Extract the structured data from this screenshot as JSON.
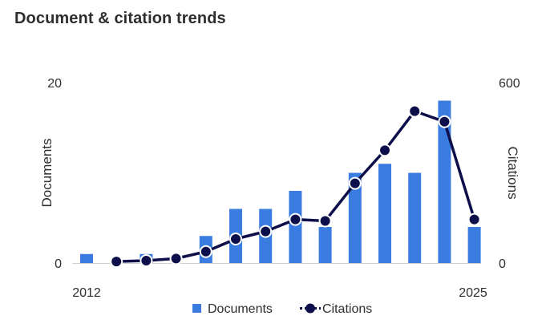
{
  "title": "Document & citation trends",
  "chart_data": {
    "type": "bar+line",
    "x": [
      2012,
      2013,
      2014,
      2015,
      2016,
      2017,
      2018,
      2019,
      2020,
      2021,
      2022,
      2023,
      2024,
      2025
    ],
    "x_tick_labels": [
      "2012",
      "2025"
    ],
    "series": [
      {
        "name": "Documents",
        "type": "bar",
        "axis": "left",
        "color": "#3a7be0",
        "values": [
          1,
          0,
          1,
          0,
          3,
          6,
          6,
          8,
          4,
          10,
          11,
          10,
          18,
          4
        ]
      },
      {
        "name": "Citations",
        "type": "line",
        "axis": "right",
        "color": "#0c0f4a",
        "x": [
          2013,
          2014,
          2015,
          2016,
          2017,
          2018,
          2019,
          2020,
          2021,
          2022,
          2023,
          2024,
          2025
        ],
        "values": [
          5,
          8,
          15,
          38,
          80,
          105,
          145,
          140,
          265,
          375,
          505,
          470,
          145
        ]
      }
    ],
    "y_left": {
      "label": "Documents",
      "range": [
        0,
        20
      ],
      "ticks": [
        "0",
        "20"
      ]
    },
    "y_right": {
      "label": "Citations",
      "range": [
        0,
        600
      ],
      "ticks": [
        "0",
        "600"
      ]
    },
    "legend": {
      "placement": "bottom",
      "items": [
        "Documents",
        "Citations"
      ]
    }
  }
}
